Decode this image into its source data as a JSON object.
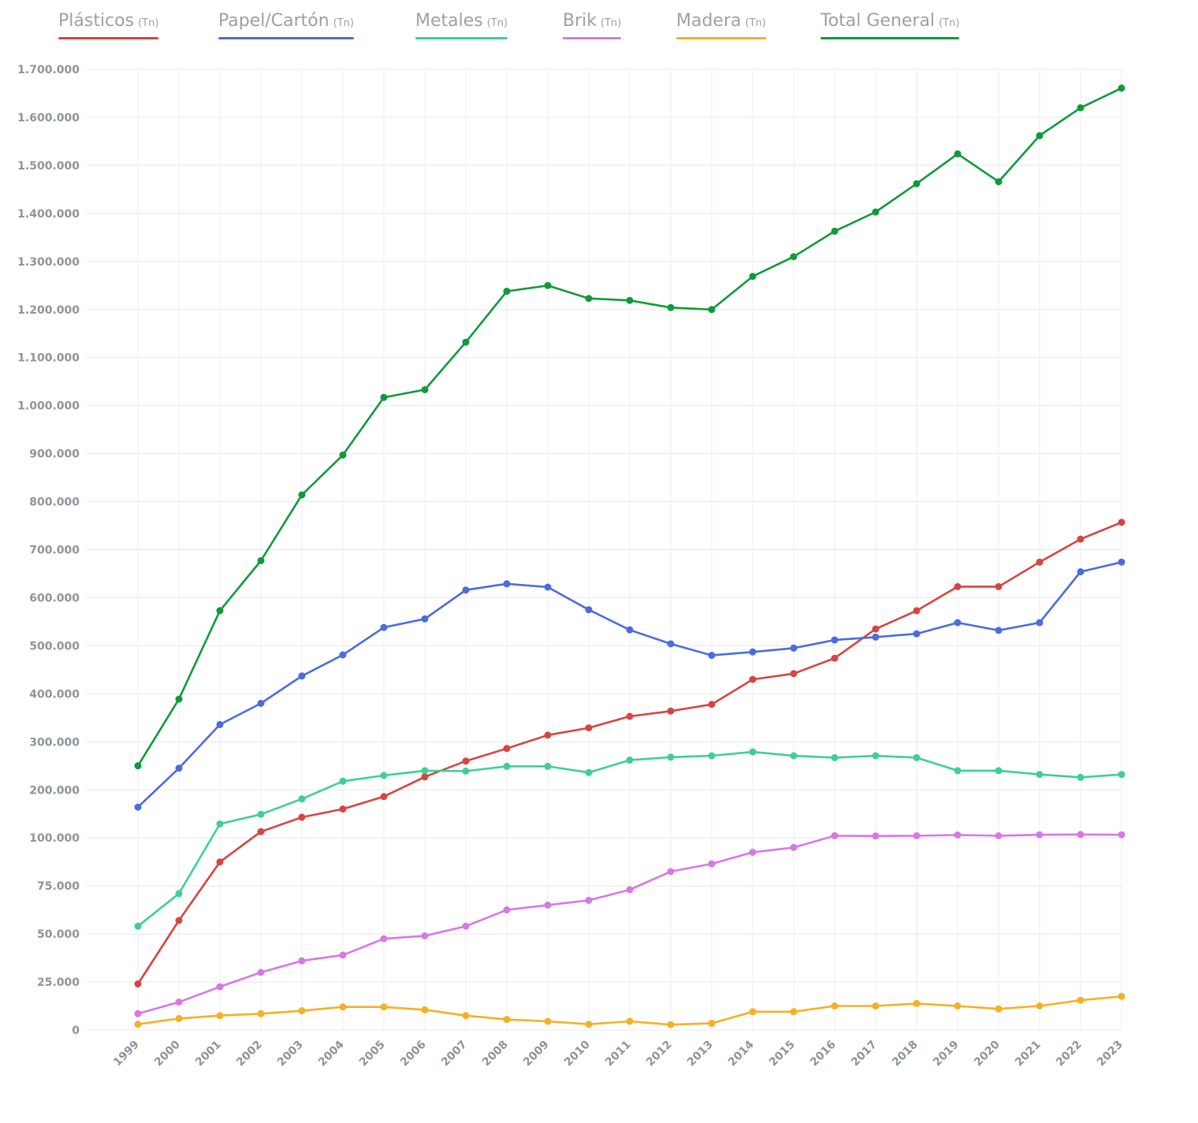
{
  "chart_data": {
    "type": "line",
    "title": "",
    "xlabel": "",
    "ylabel": "",
    "legend_position": "top",
    "grid": true,
    "y_axis_ticks": [
      "0",
      "25.000",
      "50.000",
      "75.000",
      "100.000",
      "200.000",
      "300.000",
      "400.000",
      "500.000",
      "600.000",
      "700.000",
      "800.000",
      "900.000",
      "1.000.000",
      "1.100.000",
      "1.200.000",
      "1.300.000",
      "1.400.000",
      "1.500.000",
      "1.600.000",
      "1.700.000"
    ],
    "y_tick_values": [
      0,
      25000,
      50000,
      75000,
      100000,
      200000,
      300000,
      400000,
      500000,
      600000,
      700000,
      800000,
      900000,
      1000000,
      1100000,
      1200000,
      1300000,
      1400000,
      1500000,
      1600000,
      1700000
    ],
    "categories": [
      "1999",
      "2000",
      "2001",
      "2002",
      "2003",
      "2004",
      "2005",
      "2006",
      "2007",
      "2008",
      "2009",
      "2010",
      "2011",
      "2012",
      "2013",
      "2014",
      "2015",
      "2016",
      "2017",
      "2018",
      "2019",
      "2020",
      "2021",
      "2022",
      "2023"
    ],
    "series": [
      {
        "name": "Plásticos",
        "unit": "(Tn)",
        "color": "#d64541",
        "values": [
          24000,
          57000,
          87500,
          113000,
          143000,
          160000,
          186000,
          227000,
          260000,
          286000,
          314000,
          329000,
          353000,
          364000,
          378000,
          430000,
          442000,
          474000,
          535000,
          573000,
          623000,
          623000,
          674000,
          722000,
          757000
        ]
      },
      {
        "name": "Papel/Cartón",
        "unit": "(Tn)",
        "color": "#4a6cdd",
        "values": [
          164000,
          245000,
          336000,
          380000,
          437000,
          481000,
          538000,
          556000,
          616000,
          629000,
          622000,
          575000,
          533000,
          504000,
          480000,
          487000,
          495000,
          512000,
          518000,
          525000,
          548000,
          532000,
          548000,
          654000,
          674000
        ]
      },
      {
        "name": "Metales",
        "unit": "(Tn)",
        "color": "#3ecf97",
        "values": [
          54000,
          71000,
          129000,
          149000,
          181000,
          218000,
          230000,
          240000,
          239000,
          249000,
          249000,
          236000,
          262000,
          268000,
          271000,
          279000,
          271000,
          267000,
          271000,
          267000,
          240000,
          240000,
          232000,
          226000,
          232000
        ]
      },
      {
        "name": "Brik",
        "unit": "(Tn)",
        "color": "#d678e6",
        "values": [
          8500,
          14500,
          22500,
          30000,
          36000,
          39000,
          47500,
          49000,
          54000,
          62500,
          65000,
          67500,
          73000,
          82500,
          86500,
          92500,
          95000,
          104500,
          104000,
          104500,
          106000,
          104500,
          106500,
          107000,
          106500
        ]
      },
      {
        "name": "Madera",
        "unit": "(Tn)",
        "color": "#f5b023",
        "values": [
          3000,
          6000,
          7500,
          8500,
          10000,
          12000,
          12000,
          10500,
          7500,
          5500,
          4500,
          3000,
          4500,
          2800,
          3500,
          9500,
          9500,
          12500,
          12500,
          13800,
          12500,
          11000,
          12500,
          15500,
          17500
        ]
      },
      {
        "name": "Total General",
        "unit": "(Tn)",
        "color": "#0e9b3a",
        "values": [
          250000,
          389000,
          573000,
          677000,
          814000,
          897000,
          1017000,
          1033000,
          1132000,
          1238000,
          1250000,
          1223000,
          1219000,
          1204000,
          1200000,
          1269000,
          1310000,
          1363000,
          1403000,
          1462000,
          1524000,
          1466000,
          1562000,
          1620000,
          1661000
        ]
      }
    ]
  }
}
